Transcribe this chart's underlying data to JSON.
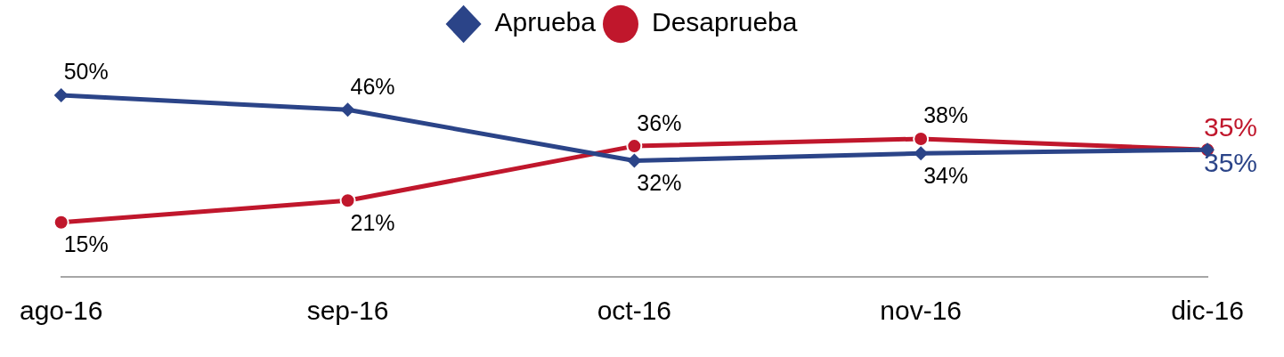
{
  "chart_data": {
    "type": "line",
    "categories": [
      "ago-16",
      "sep-16",
      "oct-16",
      "nov-16",
      "dic-16"
    ],
    "series": [
      {
        "name": "Aprueba",
        "color": "#2b4488",
        "marker": "diamond",
        "values": [
          50,
          46,
          32,
          34,
          35
        ],
        "value_labels": [
          "50%",
          "46%",
          "32%",
          "34%",
          "35%"
        ]
      },
      {
        "name": "Desaprueba",
        "color": "#c0172c",
        "marker": "circle",
        "values": [
          15,
          21,
          36,
          38,
          35
        ],
        "value_labels": [
          "15%",
          "21%",
          "36%",
          "38%",
          "35%"
        ]
      }
    ],
    "legend": "top",
    "grid": false,
    "line_style": "solid"
  }
}
